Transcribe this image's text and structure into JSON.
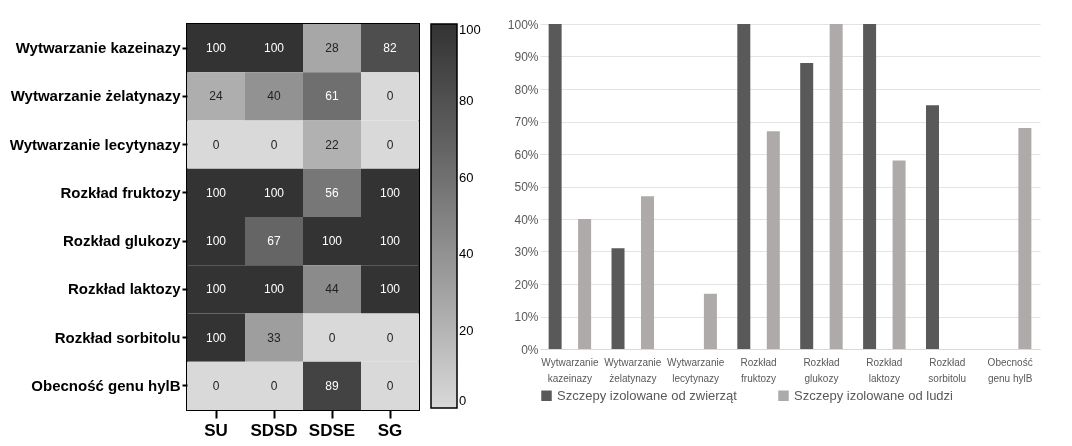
{
  "chart_data": [
    {
      "type": "heatmap",
      "categories": [
        "SU",
        "SDSD",
        "SDSE",
        "SG"
      ],
      "y_categories": [
        "Wytwarzanie kazeinazy",
        "Wytwarzanie żelatynazy",
        "Wytwarzanie lecytynazy",
        "Rozkład fruktozy",
        "Rozkład glukozy",
        "Rozkład laktozy",
        "Rozkład sorbitolu",
        "Obecność genu hylB"
      ],
      "cells": [
        [
          100,
          100,
          28,
          82
        ],
        [
          24,
          40,
          61,
          0
        ],
        [
          0,
          0,
          22,
          0
        ],
        [
          100,
          100,
          56,
          100
        ],
        [
          100,
          67,
          100,
          100
        ],
        [
          100,
          100,
          44,
          100
        ],
        [
          100,
          33,
          0,
          0
        ],
        [
          0,
          0,
          89,
          0
        ]
      ],
      "clim": [
        0,
        100
      ],
      "cticks": [
        0,
        20,
        40,
        60,
        80,
        100
      ],
      "data_labels": true
    },
    {
      "type": "bar",
      "categories": [
        "Wytwarzanie kazeinazy",
        "Wytwarzanie żelatynazy",
        "Wytwarzanie lecytynazy",
        "Rozkład fruktozy",
        "Rozkład glukozy",
        "Rozkład laktozy",
        "Rozkład sorbitolu",
        "Obecność genu hylB"
      ],
      "series": [
        {
          "name": "Szczepy izolowane od zwierząt",
          "color": "#595959",
          "values": [
            100,
            31,
            0,
            100,
            88,
            100,
            75,
            0
          ]
        },
        {
          "name": "Szczepy izolowane od ludzi",
          "color": "#aeaaaa",
          "values": [
            40,
            47,
            17,
            67,
            100,
            58,
            0,
            68
          ]
        }
      ],
      "ylim": [
        0,
        100
      ],
      "yticks": [
        {
          "value": 0,
          "label": "0%"
        },
        {
          "value": 10,
          "label": "10%"
        },
        {
          "value": 20,
          "label": "20%"
        },
        {
          "value": 30,
          "label": "30%"
        },
        {
          "value": 40,
          "label": "40%"
        },
        {
          "value": 50,
          "label": "50%"
        },
        {
          "value": 60,
          "label": "60%"
        },
        {
          "value": 70,
          "label": "70%"
        },
        {
          "value": 80,
          "label": "80%"
        },
        {
          "value": 90,
          "label": "90%"
        },
        {
          "value": 100,
          "label": "100%"
        }
      ],
      "grid": "y",
      "legend": "bottom"
    }
  ]
}
